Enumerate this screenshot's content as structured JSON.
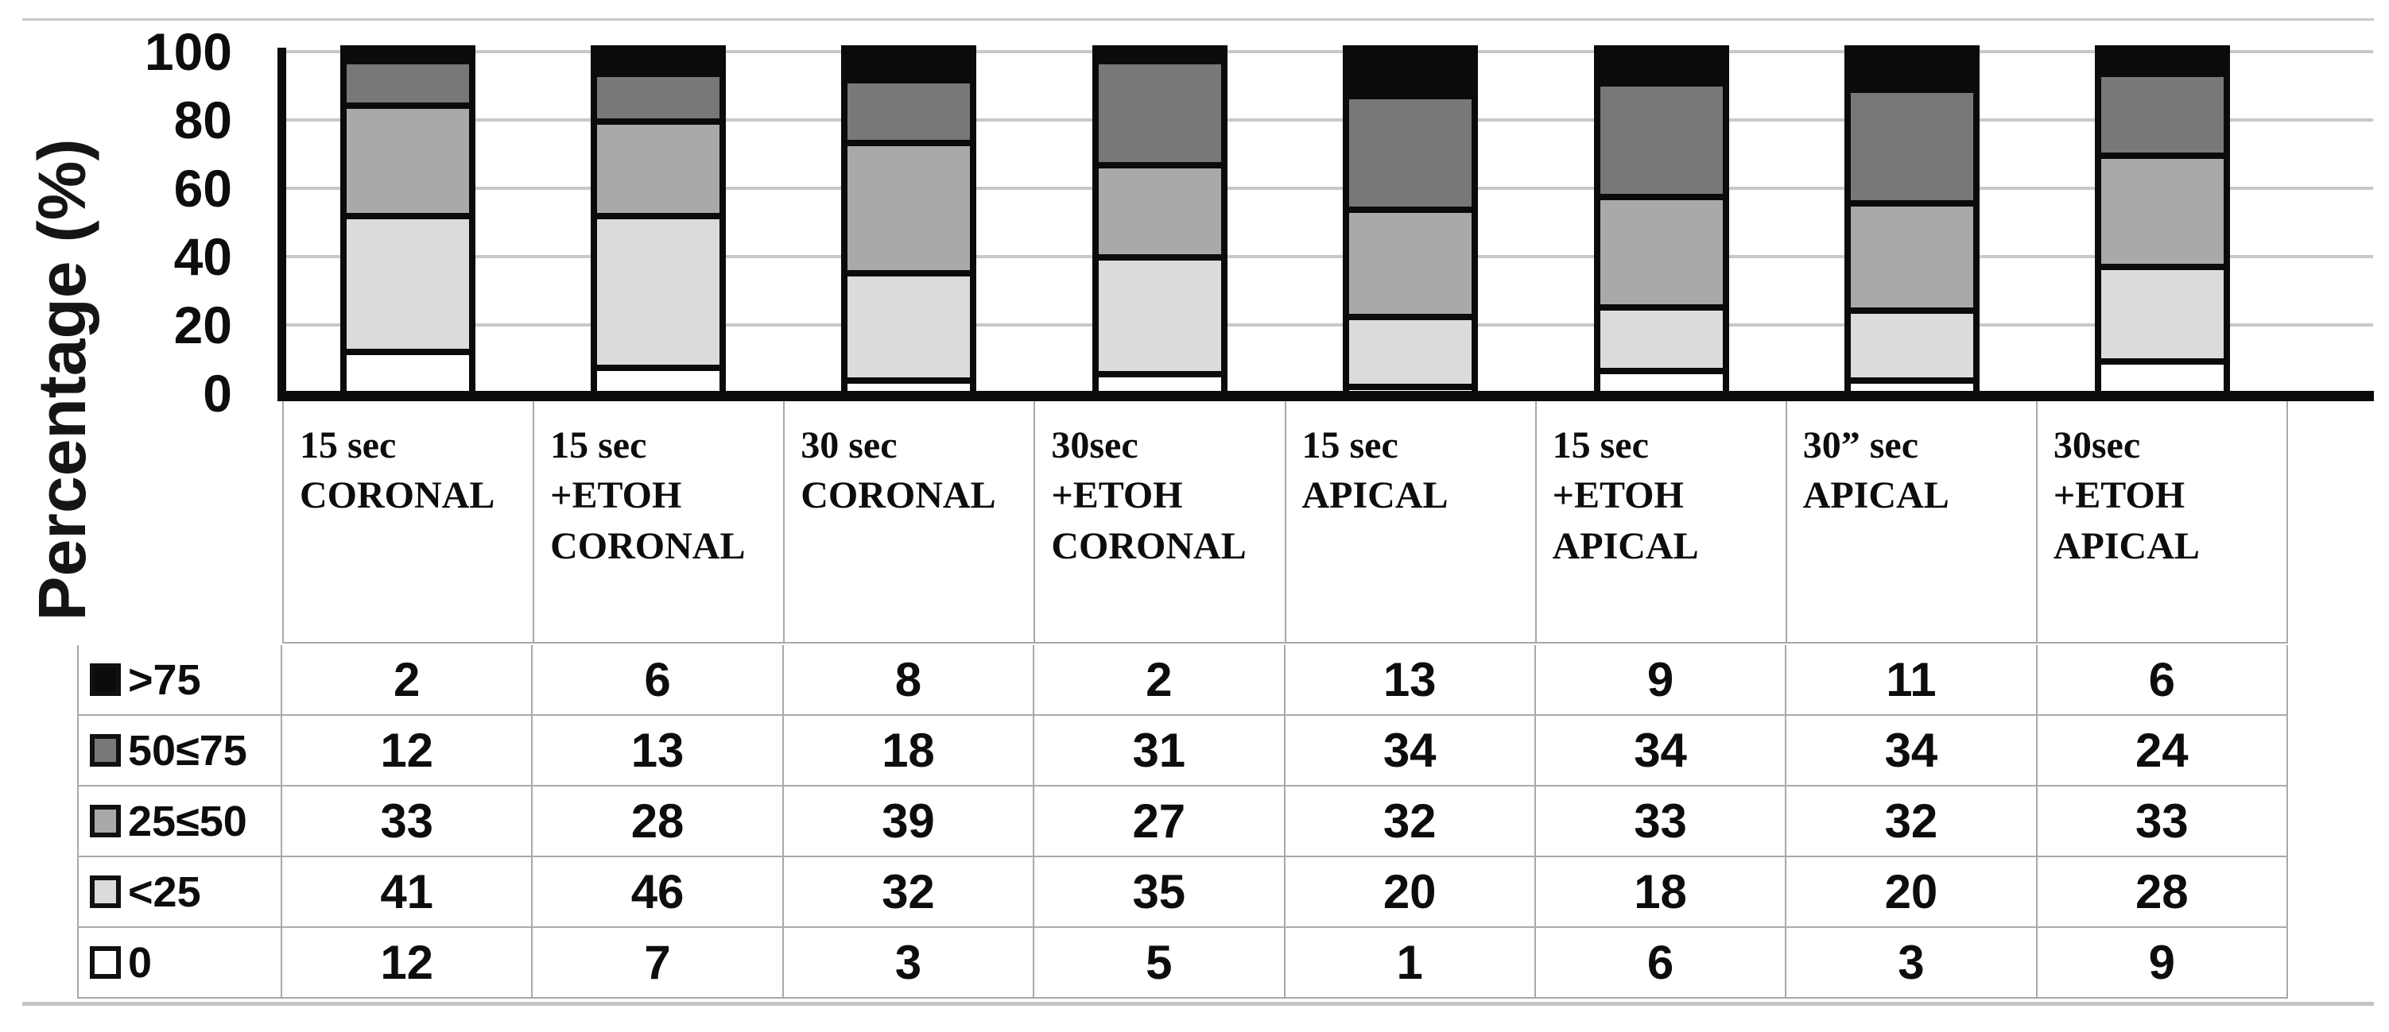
{
  "chart_data": {
    "type": "bar",
    "stacked": true,
    "percent_stacked": true,
    "title": "",
    "ylabel": "Percentage (%)",
    "xlabel": "",
    "ylim": [
      0,
      100
    ],
    "yticks": [
      "100",
      "80",
      "60",
      "40",
      "20",
      "0"
    ],
    "grid": true,
    "legend_position": "table-left",
    "categories": [
      "15 sec\nCORONAL",
      "15 sec\n+ETOH\nCORONAL",
      "30 sec\nCORONAL",
      "30sec\n+ETOH\nCORONAL",
      "15 sec\nAPICAL",
      "15 sec\n+ETOH\nAPICAL",
      "30” sec\nAPICAL",
      "30sec\n+ETOH\nAPICAL"
    ],
    "series": [
      {
        "name": ">75",
        "color": "#0b0b0b",
        "values": [
          2,
          6,
          8,
          2,
          13,
          9,
          11,
          6
        ]
      },
      {
        "name": "50≤75",
        "color": "#787878",
        "values": [
          12,
          13,
          18,
          31,
          34,
          34,
          34,
          24
        ]
      },
      {
        "name": "25≤50",
        "color": "#a9a9a9",
        "values": [
          33,
          28,
          39,
          27,
          32,
          33,
          32,
          33
        ]
      },
      {
        "name": "<25",
        "color": "#dbdbdb",
        "values": [
          41,
          46,
          32,
          35,
          20,
          18,
          20,
          28
        ]
      },
      {
        "name": "0",
        "color": "#ffffff",
        "values": [
          12,
          7,
          3,
          5,
          1,
          6,
          3,
          9
        ]
      }
    ]
  }
}
